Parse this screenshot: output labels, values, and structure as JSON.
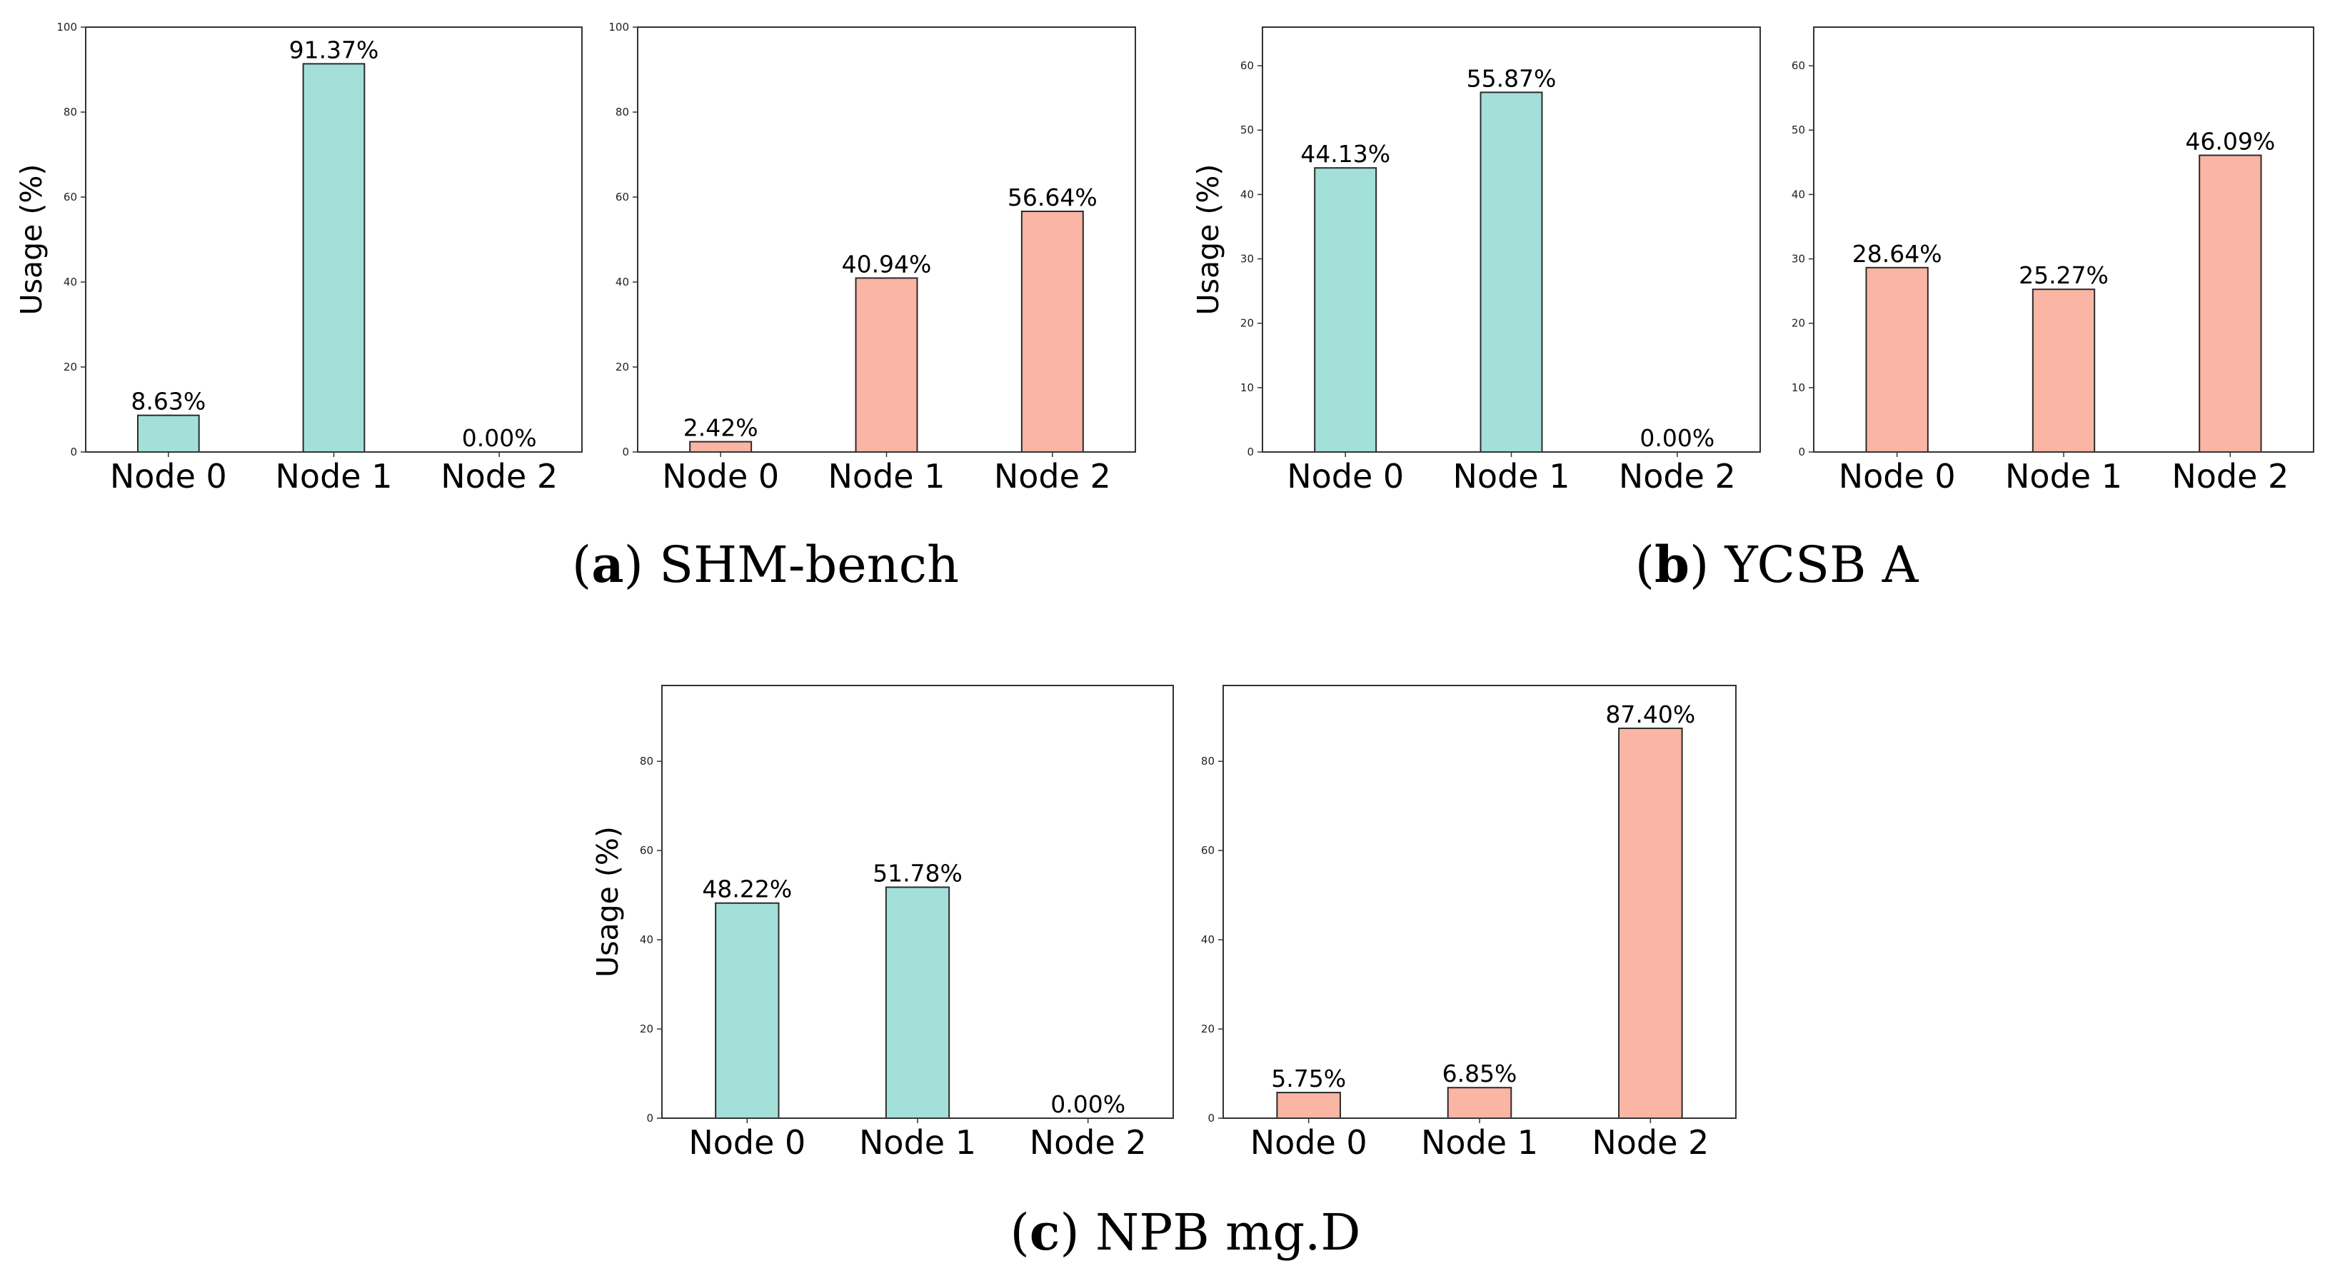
{
  "colors": {
    "teal": "#a3e0da",
    "salmon": "#fbb5a5",
    "edge": "#2b2b2b"
  },
  "chart_data": [
    {
      "type": "bar",
      "panel": "a",
      "title": "",
      "xlabel": "",
      "ylabel": "Usage (%)",
      "categories": [
        "Node 0",
        "Node 1",
        "Node 2"
      ],
      "values": [
        8.63,
        91.37,
        0.0
      ],
      "value_labels": [
        "8.63%",
        "91.37%",
        "0.00%"
      ],
      "color": "teal",
      "ylim": [
        0,
        100
      ],
      "yticks": [
        0,
        20,
        40,
        60,
        80,
        100
      ],
      "grid": false
    },
    {
      "type": "bar",
      "panel": "a",
      "title": "",
      "xlabel": "",
      "ylabel": "",
      "categories": [
        "Node 0",
        "Node 1",
        "Node 2"
      ],
      "values": [
        2.42,
        40.94,
        56.64
      ],
      "value_labels": [
        "2.42%",
        "40.94%",
        "56.64%"
      ],
      "color": "salmon",
      "ylim": [
        0,
        100
      ],
      "yticks": [
        0,
        20,
        40,
        60,
        80,
        100
      ],
      "grid": false
    },
    {
      "type": "bar",
      "panel": "b",
      "title": "",
      "xlabel": "",
      "ylabel": "Usage (%)",
      "categories": [
        "Node 0",
        "Node 1",
        "Node 2"
      ],
      "values": [
        44.13,
        55.87,
        0.0
      ],
      "value_labels": [
        "44.13%",
        "55.87%",
        "0.00%"
      ],
      "color": "teal",
      "ylim": [
        0,
        66
      ],
      "yticks": [
        0,
        10,
        20,
        30,
        40,
        50,
        60
      ],
      "grid": false
    },
    {
      "type": "bar",
      "panel": "b",
      "title": "",
      "xlabel": "",
      "ylabel": "",
      "categories": [
        "Node 0",
        "Node 1",
        "Node 2"
      ],
      "values": [
        28.64,
        25.27,
        46.09
      ],
      "value_labels": [
        "28.64%",
        "25.27%",
        "46.09%"
      ],
      "color": "salmon",
      "ylim": [
        0,
        66
      ],
      "yticks": [
        0,
        10,
        20,
        30,
        40,
        50,
        60
      ],
      "grid": false
    },
    {
      "type": "bar",
      "panel": "c",
      "title": "",
      "xlabel": "",
      "ylabel": "Usage (%)",
      "categories": [
        "Node 0",
        "Node 1",
        "Node 2"
      ],
      "values": [
        48.22,
        51.78,
        0.0
      ],
      "value_labels": [
        "48.22%",
        "51.78%",
        "0.00%"
      ],
      "color": "teal",
      "ylim": [
        0,
        97
      ],
      "yticks": [
        0,
        20,
        40,
        60,
        80
      ],
      "grid": false
    },
    {
      "type": "bar",
      "panel": "c",
      "title": "",
      "xlabel": "",
      "ylabel": "",
      "categories": [
        "Node 0",
        "Node 1",
        "Node 2"
      ],
      "values": [
        5.75,
        6.85,
        87.4
      ],
      "value_labels": [
        "5.75%",
        "6.85%",
        "87.40%"
      ],
      "color": "salmon",
      "ylim": [
        0,
        97
      ],
      "yticks": [
        0,
        20,
        40,
        60,
        80
      ],
      "grid": false
    }
  ],
  "captions": [
    {
      "letter": "a",
      "open": "(",
      "close": ")",
      "text": " SHM-bench"
    },
    {
      "letter": "b",
      "open": "(",
      "close": ")",
      "text": " YCSB A"
    },
    {
      "letter": "c",
      "open": "(",
      "close": ")",
      "text": " NPB mg.D"
    }
  ]
}
